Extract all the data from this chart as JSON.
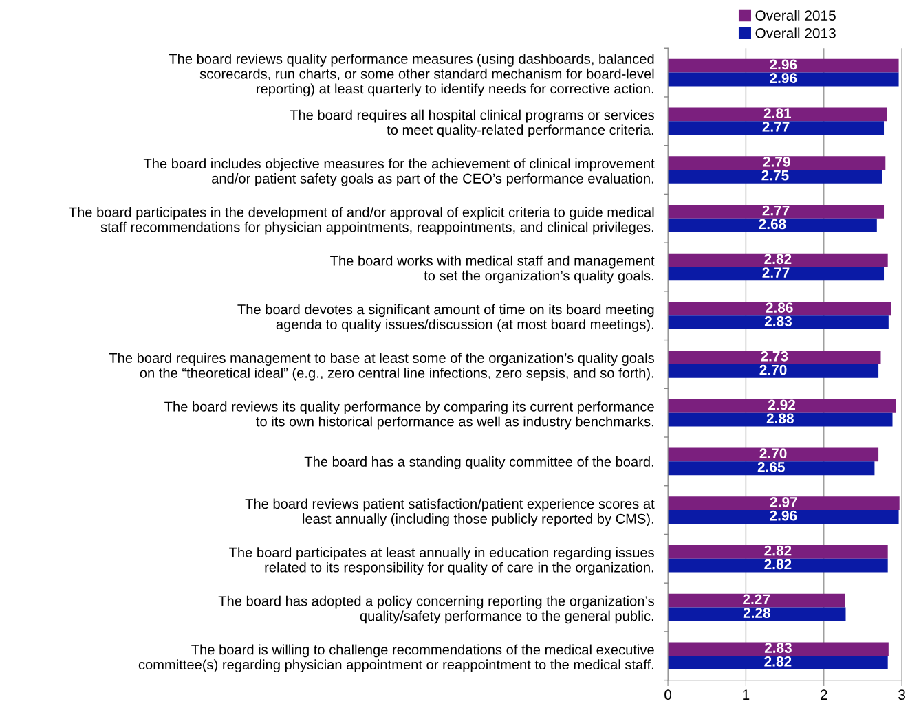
{
  "chart_data": {
    "type": "bar",
    "orientation": "horizontal",
    "categories": [
      "The board reviews quality performance measures (using dashboards, balanced\nscorecards, run charts, or some other standard mechanism for board-level\nreporting) at least quarterly to identify needs for corrective action.",
      "The board requires all hospital clinical programs or services\nto meet quality-related performance criteria.",
      "The board includes objective measures for the achievement of clinical improvement\nand/or patient safety goals as part of the CEO’s performance evaluation.",
      "The board participates in the development of and/or approval of explicit criteria to guide medical\nstaff recommendations for physician appointments, reappointments, and clinical privileges.",
      "The board works with medical staff and management\nto set the organization’s quality goals.",
      "The board devotes a significant amount of time on its board meeting\nagenda to quality issues/discussion (at most board meetings).",
      "The board requires management to base at least some of the organization’s quality goals\non the “theoretical ideal” (e.g., zero central line infections, zero sepsis, and so forth).",
      "The board reviews its quality performance by comparing its current performance\nto its own historical performance as well as industry benchmarks.",
      "The board has a standing quality committee of the board.",
      "The board reviews patient satisfaction/patient experience scores at\nleast annually (including those publicly reported by CMS).",
      "The board participates at least annually in education regarding issues\nrelated to its responsibility for quality of care in the organization.",
      "The board has adopted a policy concerning reporting the organization’s\nquality/safety performance to the general public.",
      "The board is willing to challenge recommendations of the medical executive\ncommittee(s) regarding physician appointment or reappointment to the medical staff."
    ],
    "series": [
      {
        "name": "Overall 2015",
        "color": "#7b1f7e",
        "values": [
          2.96,
          2.81,
          2.79,
          2.77,
          2.82,
          2.86,
          2.73,
          2.92,
          2.7,
          2.97,
          2.82,
          2.27,
          2.83
        ],
        "value_labels": [
          "2.96",
          "2.81",
          "2.79",
          "2.77",
          "2.82",
          "2.86",
          "2.73",
          "2.92",
          "2.70",
          "2.97",
          "2.82",
          "2.27",
          "2.83"
        ]
      },
      {
        "name": "Overall 2013",
        "color": "#0a1aa6",
        "values": [
          2.96,
          2.77,
          2.75,
          2.68,
          2.77,
          2.83,
          2.7,
          2.88,
          2.65,
          2.96,
          2.82,
          2.28,
          2.82
        ],
        "value_labels": [
          "2.96",
          "2.77",
          "2.75",
          "2.68",
          "2.77",
          "2.83",
          "2.70",
          "2.88",
          "2.65",
          "2.96",
          "2.82",
          "2.28",
          "2.82"
        ]
      }
    ],
    "xlim": [
      0,
      3
    ],
    "xticks": [
      0,
      1,
      2,
      3
    ],
    "grid": "x",
    "legend": "top right"
  }
}
